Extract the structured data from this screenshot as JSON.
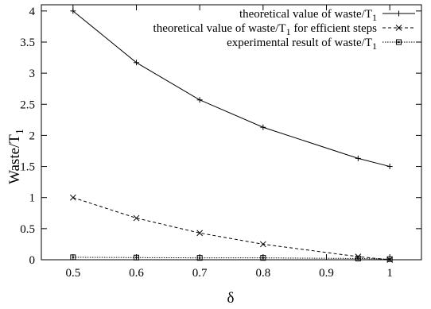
{
  "chart_data": {
    "type": "line",
    "xlabel": "δ",
    "ylabel": "Waste/T",
    "ylabel_sub": "1",
    "xlim": [
      0.45,
      1.05
    ],
    "ylim": [
      0,
      4.1
    ],
    "xticks": [
      "0.5",
      "0.6",
      "0.7",
      "0.8",
      "0.9",
      "1"
    ],
    "yticks": [
      "0",
      "0.5",
      "1",
      "1.5",
      "2",
      "2.5",
      "3",
      "3.5",
      "4"
    ],
    "grid": false,
    "legend_position": "top-right",
    "series": [
      {
        "name": "theoretical value of waste/T",
        "name_sub": "1",
        "name_suffix": "",
        "line_style": "solid",
        "marker": "plus",
        "color": "#000000",
        "x": [
          0.5,
          0.6,
          0.7,
          0.8,
          0.95,
          1.0
        ],
        "y": [
          4.0,
          3.17,
          2.57,
          2.13,
          1.63,
          1.5
        ]
      },
      {
        "name": "theoretical value of waste/T",
        "name_sub": "1",
        "name_suffix": " for efficient steps",
        "line_style": "dashed",
        "marker": "cross",
        "color": "#000000",
        "x": [
          0.5,
          0.6,
          0.7,
          0.8,
          0.95,
          1.0
        ],
        "y": [
          1.0,
          0.67,
          0.43,
          0.25,
          0.05,
          0.0
        ]
      },
      {
        "name": "experimental result of waste/T",
        "name_sub": "1",
        "name_suffix": "",
        "line_style": "dotted",
        "marker": "square",
        "color": "#000000",
        "x": [
          0.5,
          0.6,
          0.7,
          0.8,
          0.95,
          1.0
        ],
        "y": [
          0.04,
          0.035,
          0.03,
          0.03,
          0.02,
          0.01
        ]
      }
    ]
  }
}
